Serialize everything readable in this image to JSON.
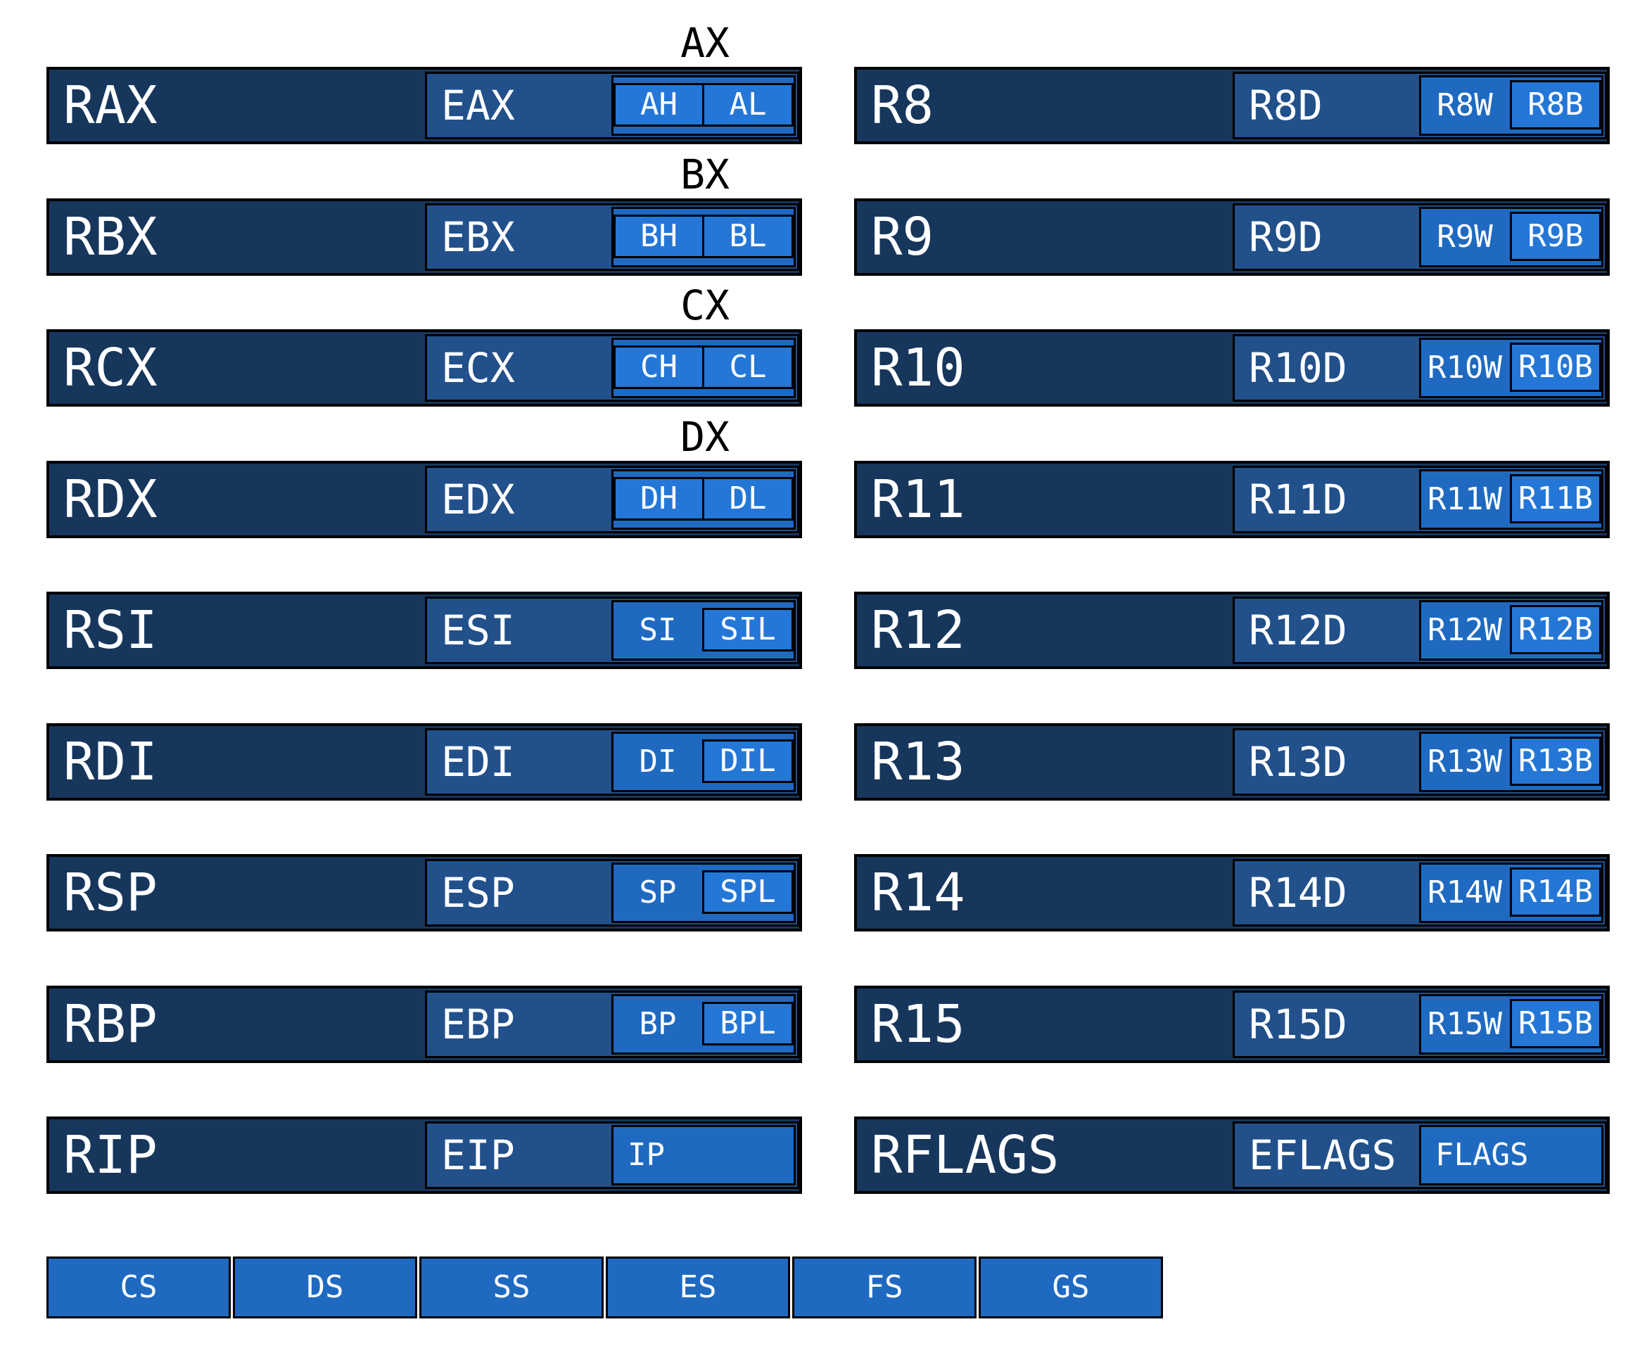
{
  "left_registers": [
    {
      "r64": "RAX",
      "r32": "EAX",
      "r16": "AX",
      "r8h": "AH",
      "r8l": "AL"
    },
    {
      "r64": "RBX",
      "r32": "EBX",
      "r16": "BX",
      "r8h": "BH",
      "r8l": "BL"
    },
    {
      "r64": "RCX",
      "r32": "ECX",
      "r16": "CX",
      "r8h": "CH",
      "r8l": "CL"
    },
    {
      "r64": "RDX",
      "r32": "EDX",
      "r16": "DX",
      "r8h": "DH",
      "r8l": "DL"
    },
    {
      "r64": "RSI",
      "r32": "ESI",
      "r16": "SI",
      "r8": "SIL"
    },
    {
      "r64": "RDI",
      "r32": "EDI",
      "r16": "DI",
      "r8": "DIL"
    },
    {
      "r64": "RSP",
      "r32": "ESP",
      "r16": "SP",
      "r8": "SPL"
    },
    {
      "r64": "RBP",
      "r32": "EBP",
      "r16": "BP",
      "r8": "BPL"
    },
    {
      "r64": "RIP",
      "r32": "EIP",
      "r16": "IP"
    }
  ],
  "right_registers": [
    {
      "r64": "R8",
      "r32": "R8D",
      "r16": "R8W",
      "r8": "R8B"
    },
    {
      "r64": "R9",
      "r32": "R9D",
      "r16": "R9W",
      "r8": "R9B"
    },
    {
      "r64": "R10",
      "r32": "R10D",
      "r16": "R10W",
      "r8": "R10B"
    },
    {
      "r64": "R11",
      "r32": "R11D",
      "r16": "R11W",
      "r8": "R11B"
    },
    {
      "r64": "R12",
      "r32": "R12D",
      "r16": "R12W",
      "r8": "R12B"
    },
    {
      "r64": "R13",
      "r32": "R13D",
      "r16": "R13W",
      "r8": "R13B"
    },
    {
      "r64": "R14",
      "r32": "R14D",
      "r16": "R14W",
      "r8": "R14B"
    },
    {
      "r64": "R15",
      "r32": "R15D",
      "r16": "R15W",
      "r8": "R15B"
    },
    {
      "r64": "RFLAGS",
      "r32": "EFLAGS",
      "r16": "FLAGS"
    }
  ],
  "segment_registers": [
    "CS",
    "DS",
    "SS",
    "ES",
    "FS",
    "GS"
  ],
  "colors": {
    "r64_fill": "#17365c",
    "r32_fill": "#22508a",
    "r16_fill": "#1f6ac0",
    "r8_fill": "#2477d6",
    "border": "#000000",
    "text": "#ffffff"
  }
}
